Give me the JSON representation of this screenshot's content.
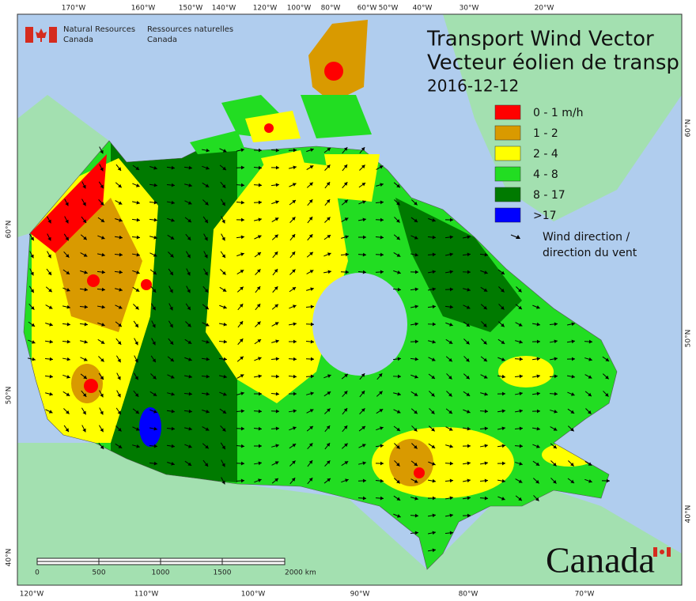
{
  "header": {
    "agency_en": [
      "Natural Resources",
      "Canada"
    ],
    "agency_fr": [
      "Ressources naturelles",
      "Canada"
    ]
  },
  "title": {
    "line1": "Transport Wind Vector",
    "line2": "Vecteur éolien de transp",
    "date": "2016-12-12"
  },
  "legend": {
    "items": [
      {
        "label": "0 - 1 m/h",
        "color": "#ff0000"
      },
      {
        "label": "1 - 2",
        "color": "#d99a00"
      },
      {
        "label": "2 - 4",
        "color": "#ffff00"
      },
      {
        "label": "4 - 8",
        "color": "#22dd22"
      },
      {
        "label": "8 - 17",
        "color": "#007a00"
      },
      {
        "label": ">17",
        "color": "#0000ff"
      }
    ],
    "arrow_label": [
      "Wind direction /",
      "direction du vent"
    ]
  },
  "graticule": {
    "top": [
      "170°W",
      "160°W",
      "150°W",
      "140°W",
      "120°W",
      "100°W",
      "80°W",
      "60°W",
      "50°W",
      "40°W",
      "30°W",
      "20°W"
    ],
    "bottom": [
      "120°W",
      "110°W",
      "100°W",
      "90°W",
      "80°W",
      "70°W"
    ],
    "left": [
      "60°N",
      "50°N",
      "40°N"
    ],
    "right": [
      "60°N",
      "50°N",
      "40°N"
    ]
  },
  "scale_bar": {
    "labels": [
      "0",
      "500",
      "1000",
      "1500",
      "2000 km"
    ]
  },
  "wordmark": "Canada"
}
